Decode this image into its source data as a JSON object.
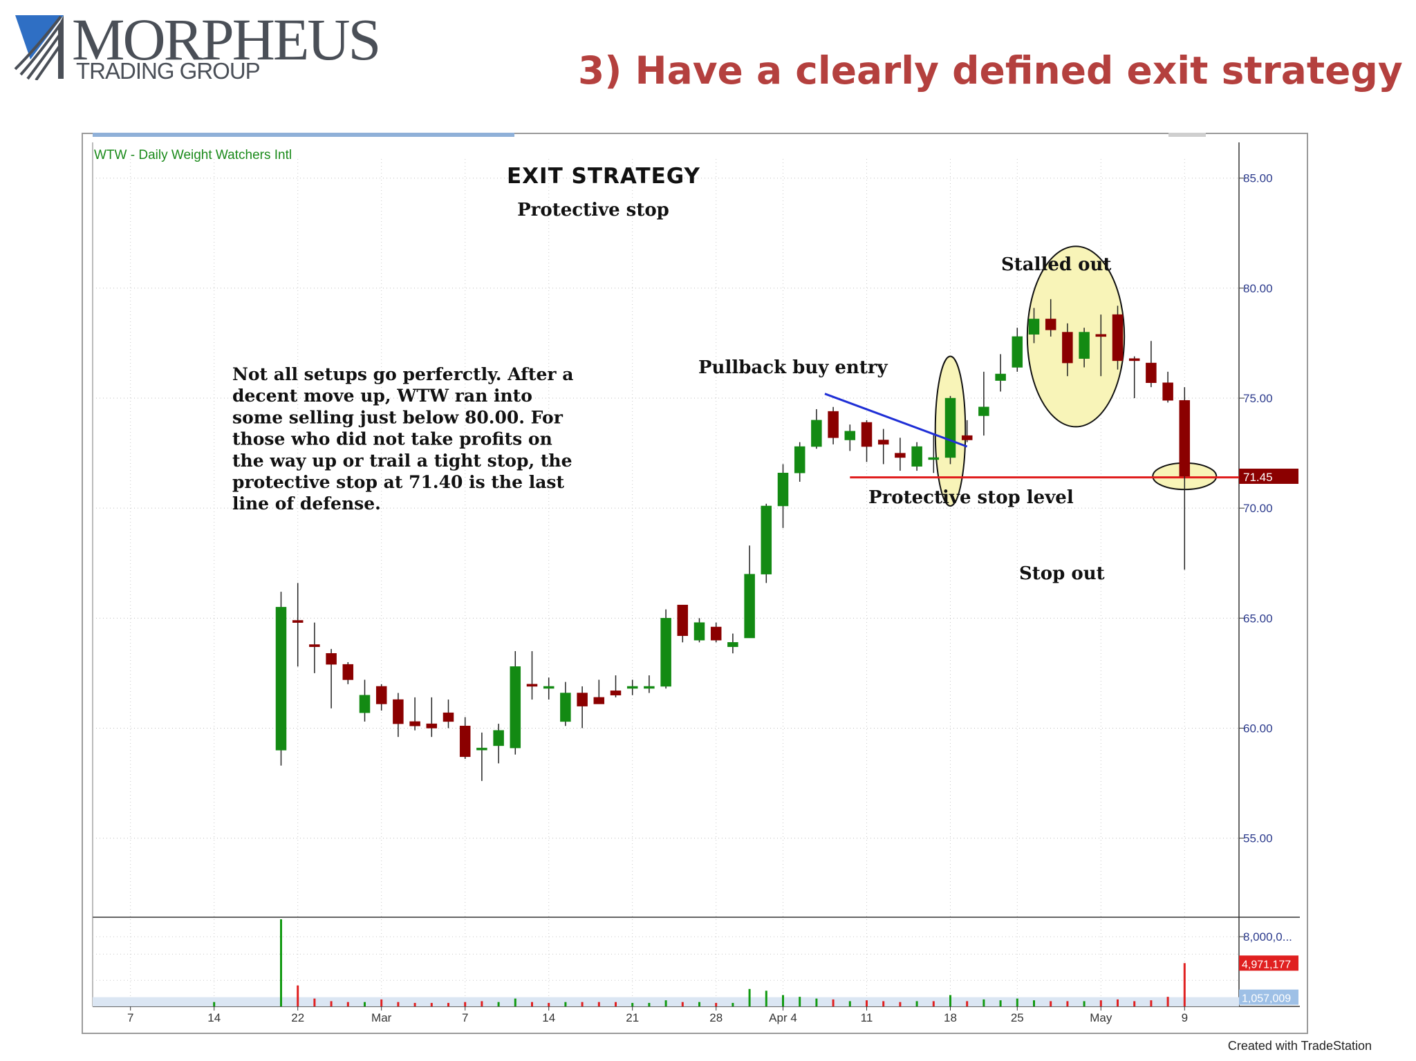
{
  "logo": {
    "wordmark": "MORPHEUS",
    "subtitle": "TRADING GROUP"
  },
  "headline": "3) Have a clearly defined exit strategy",
  "footer": "Created with TradeStation",
  "colors": {
    "up": "#138a13",
    "down": "#8b0000",
    "stop_line": "#e01b1b",
    "trend_line": "#1f2fd6",
    "highlight": "#f8f4b8",
    "headline": "#b4403e",
    "axis_labels": "#2b3a8c"
  },
  "chart_data": {
    "type": "candlestick",
    "symbol_label": "WTW - Daily  Weight Watchers Intl",
    "title": "EXIT STRATEGY",
    "subtitle": "Protective stop",
    "ylim": [
      51.5,
      86.5
    ],
    "y_ticks": [
      "85.00",
      "80.00",
      "75.00",
      "70.00",
      "65.00",
      "60.00",
      "55.00"
    ],
    "y_tick_values": [
      85,
      80,
      75,
      70,
      65,
      60,
      55
    ],
    "last_price_badge": {
      "label": "71.45",
      "value": 71.45
    },
    "x_labels": [
      {
        "label": "7",
        "slot": 1
      },
      {
        "label": "14",
        "slot": 6
      },
      {
        "label": "22",
        "slot": 11
      },
      {
        "label": "Mar",
        "slot": 16
      },
      {
        "label": "7",
        "slot": 21
      },
      {
        "label": "14",
        "slot": 26
      },
      {
        "label": "21",
        "slot": 31
      },
      {
        "label": "28",
        "slot": 36
      },
      {
        "label": "Apr 4",
        "slot": 40
      },
      {
        "label": "11",
        "slot": 45
      },
      {
        "label": "18",
        "slot": 50
      },
      {
        "label": "25",
        "slot": 54
      },
      {
        "label": "May",
        "slot": 59
      },
      {
        "label": "9",
        "slot": 64
      }
    ],
    "candles": [
      {
        "slot": 10,
        "o": 59.0,
        "h": 66.2,
        "l": 58.3,
        "c": 65.5
      },
      {
        "slot": 11,
        "o": 64.9,
        "h": 66.6,
        "l": 62.8,
        "c": 64.8
      },
      {
        "slot": 12,
        "o": 63.8,
        "h": 64.8,
        "l": 62.5,
        "c": 63.7
      },
      {
        "slot": 13,
        "o": 63.4,
        "h": 63.6,
        "l": 60.9,
        "c": 62.9
      },
      {
        "slot": 14,
        "o": 62.9,
        "h": 63.0,
        "l": 62.0,
        "c": 62.2
      },
      {
        "slot": 15,
        "o": 60.7,
        "h": 62.2,
        "l": 60.3,
        "c": 61.5
      },
      {
        "slot": 16,
        "o": 61.9,
        "h": 62.0,
        "l": 60.8,
        "c": 61.1
      },
      {
        "slot": 17,
        "o": 61.3,
        "h": 61.6,
        "l": 59.6,
        "c": 60.2
      },
      {
        "slot": 18,
        "o": 60.3,
        "h": 61.4,
        "l": 59.9,
        "c": 60.1
      },
      {
        "slot": 19,
        "o": 60.2,
        "h": 61.4,
        "l": 59.6,
        "c": 60.0
      },
      {
        "slot": 20,
        "o": 60.7,
        "h": 61.3,
        "l": 60.0,
        "c": 60.3
      },
      {
        "slot": 21,
        "o": 60.1,
        "h": 60.5,
        "l": 58.6,
        "c": 58.7
      },
      {
        "slot": 22,
        "o": 59.1,
        "h": 59.8,
        "l": 57.6,
        "c": 59.1
      },
      {
        "slot": 23,
        "o": 59.2,
        "h": 60.2,
        "l": 58.4,
        "c": 59.9
      },
      {
        "slot": 24,
        "o": 59.1,
        "h": 63.5,
        "l": 58.8,
        "c": 62.8
      },
      {
        "slot": 25,
        "o": 62.0,
        "h": 63.5,
        "l": 61.3,
        "c": 61.9
      },
      {
        "slot": 26,
        "o": 61.9,
        "h": 62.3,
        "l": 61.3,
        "c": 61.9
      },
      {
        "slot": 27,
        "o": 60.3,
        "h": 62.1,
        "l": 60.1,
        "c": 61.6
      },
      {
        "slot": 28,
        "o": 61.6,
        "h": 61.9,
        "l": 60.0,
        "c": 61.0
      },
      {
        "slot": 29,
        "o": 61.4,
        "h": 62.2,
        "l": 61.1,
        "c": 61.1
      },
      {
        "slot": 30,
        "o": 61.7,
        "h": 62.4,
        "l": 61.4,
        "c": 61.5
      },
      {
        "slot": 31,
        "o": 61.9,
        "h": 62.2,
        "l": 61.5,
        "c": 61.9
      },
      {
        "slot": 32,
        "o": 61.9,
        "h": 62.4,
        "l": 61.6,
        "c": 61.9
      },
      {
        "slot": 33,
        "o": 61.9,
        "h": 65.4,
        "l": 61.8,
        "c": 65.0
      },
      {
        "slot": 34,
        "o": 65.6,
        "h": 65.6,
        "l": 63.9,
        "c": 64.2
      },
      {
        "slot": 35,
        "o": 64.0,
        "h": 65.0,
        "l": 63.9,
        "c": 64.8
      },
      {
        "slot": 36,
        "o": 64.6,
        "h": 64.8,
        "l": 63.9,
        "c": 64.0
      },
      {
        "slot": 37,
        "o": 63.7,
        "h": 64.3,
        "l": 63.4,
        "c": 63.9
      },
      {
        "slot": 38,
        "o": 64.1,
        "h": 68.3,
        "l": 64.1,
        "c": 67.0
      },
      {
        "slot": 39,
        "o": 67.0,
        "h": 70.2,
        "l": 66.6,
        "c": 70.1
      },
      {
        "slot": 40,
        "o": 70.1,
        "h": 72.0,
        "l": 69.1,
        "c": 71.6
      },
      {
        "slot": 41,
        "o": 71.6,
        "h": 73.0,
        "l": 71.2,
        "c": 72.8
      },
      {
        "slot": 42,
        "o": 72.8,
        "h": 74.5,
        "l": 72.7,
        "c": 74.0
      },
      {
        "slot": 43,
        "o": 74.4,
        "h": 74.6,
        "l": 72.9,
        "c": 73.2
      },
      {
        "slot": 44,
        "o": 73.1,
        "h": 73.8,
        "l": 72.6,
        "c": 73.5
      },
      {
        "slot": 45,
        "o": 73.9,
        "h": 74.0,
        "l": 72.1,
        "c": 72.8
      },
      {
        "slot": 46,
        "o": 73.1,
        "h": 73.6,
        "l": 72.0,
        "c": 72.9
      },
      {
        "slot": 47,
        "o": 72.5,
        "h": 73.2,
        "l": 71.7,
        "c": 72.3
      },
      {
        "slot": 48,
        "o": 71.9,
        "h": 73.0,
        "l": 71.7,
        "c": 72.8
      },
      {
        "slot": 49,
        "o": 72.3,
        "h": 73.4,
        "l": 71.6,
        "c": 72.3
      },
      {
        "slot": 50,
        "o": 72.3,
        "h": 75.1,
        "l": 72.0,
        "c": 75.0
      },
      {
        "slot": 51,
        "o": 73.3,
        "h": 74.0,
        "l": 73.0,
        "c": 73.1
      },
      {
        "slot": 52,
        "o": 74.2,
        "h": 76.2,
        "l": 73.3,
        "c": 74.6
      },
      {
        "slot": 53,
        "o": 75.8,
        "h": 77.0,
        "l": 75.3,
        "c": 76.1
      },
      {
        "slot": 54,
        "o": 76.4,
        "h": 78.2,
        "l": 76.2,
        "c": 77.8
      },
      {
        "slot": 55,
        "o": 77.9,
        "h": 79.1,
        "l": 77.5,
        "c": 78.6
      },
      {
        "slot": 56,
        "o": 78.6,
        "h": 79.5,
        "l": 77.8,
        "c": 78.1
      },
      {
        "slot": 57,
        "o": 78.0,
        "h": 78.4,
        "l": 76.0,
        "c": 76.6
      },
      {
        "slot": 58,
        "o": 76.8,
        "h": 78.2,
        "l": 76.4,
        "c": 78.0
      },
      {
        "slot": 59,
        "o": 77.9,
        "h": 78.8,
        "l": 76.0,
        "c": 77.8
      },
      {
        "slot": 60,
        "o": 78.8,
        "h": 79.2,
        "l": 76.3,
        "c": 76.7
      },
      {
        "slot": 61,
        "o": 76.8,
        "h": 76.9,
        "l": 75.0,
        "c": 76.7
      },
      {
        "slot": 62,
        "o": 76.6,
        "h": 77.6,
        "l": 75.5,
        "c": 75.7
      },
      {
        "slot": 63,
        "o": 75.7,
        "h": 76.2,
        "l": 74.8,
        "c": 74.9
      },
      {
        "slot": 64,
        "o": 74.9,
        "h": 75.5,
        "l": 67.2,
        "c": 71.45
      }
    ],
    "stop_level": 71.4,
    "annotations": {
      "note": [
        "Not all setups go perferctly.  After a",
        "decent move up, WTW ran into",
        "some selling just below 80.00.  For",
        "those who did not take profits on",
        "the way up or trail a tight stop, the",
        "protective stop at 71.40 is the last",
        "line of defense."
      ],
      "pullback": "Pullback buy entry",
      "stalled": "Stalled out",
      "stop_level_label": "Protective stop level",
      "stop_out": "Stop out"
    },
    "trendline": {
      "from": {
        "slot": 42.5,
        "price": 75.2
      },
      "to": {
        "slot": 51,
        "price": 72.8
      }
    },
    "highlights": [
      {
        "name": "pullback-entry",
        "slot": 50,
        "price": 73.5,
        "rx_slots": 0.9,
        "ry_price": 3.4
      },
      {
        "name": "stalled-out",
        "slot": 57.5,
        "price": 77.8,
        "rx_slots": 2.9,
        "ry_price": 4.1
      },
      {
        "name": "stop-out",
        "slot": 64,
        "price": 71.45,
        "rx_slots": 1.9,
        "ry_price": 0.6
      }
    ],
    "volume": {
      "ylim": [
        0,
        10
      ],
      "tick_labels": [
        {
          "label": "8,000,0...",
          "value": 8
        },
        {
          "label": "4,971,177",
          "value": 4.97,
          "badge": "red"
        },
        {
          "label": "1,057,009",
          "value": 1.06,
          "badge": "blue"
        }
      ],
      "bars": [
        {
          "slot": 6,
          "v": 0.5,
          "up": true
        },
        {
          "slot": 10,
          "v": 10.0,
          "up": true
        },
        {
          "slot": 11,
          "v": 2.4,
          "up": false
        },
        {
          "slot": 12,
          "v": 0.9,
          "up": false
        },
        {
          "slot": 13,
          "v": 0.6,
          "up": false
        },
        {
          "slot": 14,
          "v": 0.5,
          "up": false
        },
        {
          "slot": 15,
          "v": 0.5,
          "up": true
        },
        {
          "slot": 16,
          "v": 0.8,
          "up": false
        },
        {
          "slot": 17,
          "v": 0.5,
          "up": false
        },
        {
          "slot": 18,
          "v": 0.4,
          "up": false
        },
        {
          "slot": 19,
          "v": 0.4,
          "up": false
        },
        {
          "slot": 20,
          "v": 0.4,
          "up": false
        },
        {
          "slot": 21,
          "v": 0.5,
          "up": false
        },
        {
          "slot": 22,
          "v": 0.6,
          "up": false
        },
        {
          "slot": 23,
          "v": 0.5,
          "up": true
        },
        {
          "slot": 24,
          "v": 0.9,
          "up": true
        },
        {
          "slot": 25,
          "v": 0.5,
          "up": false
        },
        {
          "slot": 26,
          "v": 0.4,
          "up": false
        },
        {
          "slot": 27,
          "v": 0.5,
          "up": true
        },
        {
          "slot": 28,
          "v": 0.5,
          "up": false
        },
        {
          "slot": 29,
          "v": 0.5,
          "up": false
        },
        {
          "slot": 30,
          "v": 0.5,
          "up": false
        },
        {
          "slot": 31,
          "v": 0.4,
          "up": true
        },
        {
          "slot": 32,
          "v": 0.4,
          "up": true
        },
        {
          "slot": 33,
          "v": 0.7,
          "up": true
        },
        {
          "slot": 34,
          "v": 0.5,
          "up": false
        },
        {
          "slot": 35,
          "v": 0.5,
          "up": true
        },
        {
          "slot": 36,
          "v": 0.4,
          "up": false
        },
        {
          "slot": 37,
          "v": 0.4,
          "up": true
        },
        {
          "slot": 38,
          "v": 2.0,
          "up": true
        },
        {
          "slot": 39,
          "v": 1.8,
          "up": true
        },
        {
          "slot": 40,
          "v": 1.3,
          "up": true
        },
        {
          "slot": 41,
          "v": 1.1,
          "up": true
        },
        {
          "slot": 42,
          "v": 0.9,
          "up": true
        },
        {
          "slot": 43,
          "v": 0.8,
          "up": false
        },
        {
          "slot": 44,
          "v": 0.6,
          "up": true
        },
        {
          "slot": 45,
          "v": 0.7,
          "up": false
        },
        {
          "slot": 46,
          "v": 0.6,
          "up": false
        },
        {
          "slot": 47,
          "v": 0.5,
          "up": false
        },
        {
          "slot": 48,
          "v": 0.6,
          "up": true
        },
        {
          "slot": 49,
          "v": 0.6,
          "up": false
        },
        {
          "slot": 50,
          "v": 1.3,
          "up": true
        },
        {
          "slot": 51,
          "v": 0.6,
          "up": false
        },
        {
          "slot": 52,
          "v": 0.8,
          "up": true
        },
        {
          "slot": 53,
          "v": 0.7,
          "up": true
        },
        {
          "slot": 54,
          "v": 0.9,
          "up": true
        },
        {
          "slot": 55,
          "v": 0.7,
          "up": true
        },
        {
          "slot": 56,
          "v": 0.6,
          "up": false
        },
        {
          "slot": 57,
          "v": 0.6,
          "up": false
        },
        {
          "slot": 58,
          "v": 0.6,
          "up": true
        },
        {
          "slot": 59,
          "v": 0.7,
          "up": false
        },
        {
          "slot": 60,
          "v": 0.8,
          "up": false
        },
        {
          "slot": 61,
          "v": 0.6,
          "up": false
        },
        {
          "slot": 62,
          "v": 0.7,
          "up": false
        },
        {
          "slot": 63,
          "v": 1.1,
          "up": false
        },
        {
          "slot": 64,
          "v": 4.97,
          "up": false
        }
      ]
    }
  }
}
